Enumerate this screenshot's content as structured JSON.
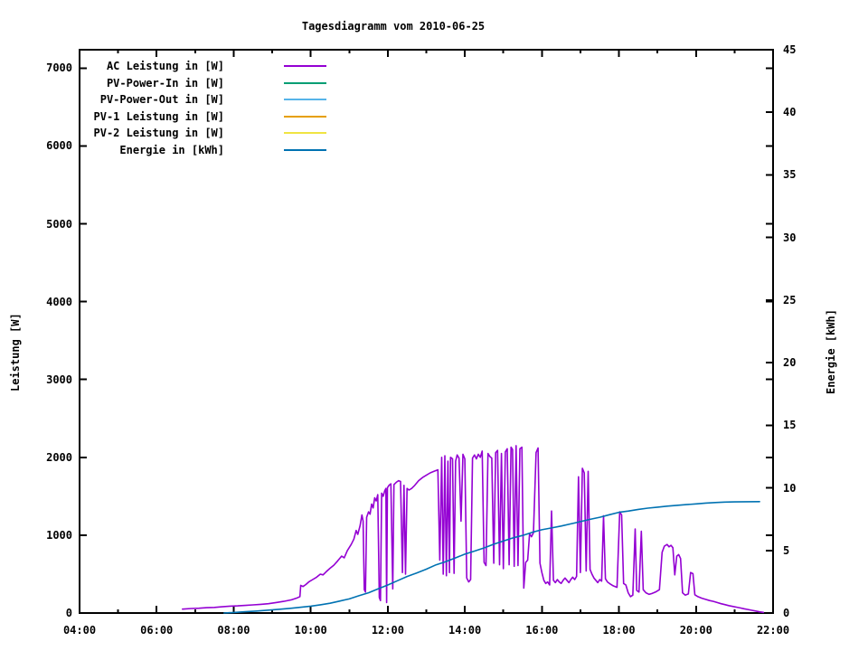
{
  "title": "Tagesdiagramm vom 2010-06-25",
  "axes": {
    "x": {
      "ticks": [
        {
          "t": 4,
          "label": "04:00"
        },
        {
          "t": 6,
          "label": "06:00"
        },
        {
          "t": 8,
          "label": "08:00"
        },
        {
          "t": 10,
          "label": "10:00"
        },
        {
          "t": 12,
          "label": "12:00"
        },
        {
          "t": 14,
          "label": "14:00"
        },
        {
          "t": 16,
          "label": "16:00"
        },
        {
          "t": 18,
          "label": "18:00"
        },
        {
          "t": 20,
          "label": "20:00"
        },
        {
          "t": 22,
          "label": "22:00"
        }
      ],
      "minor_hours": [
        5,
        7,
        9,
        11,
        13,
        15,
        17,
        19,
        21
      ]
    },
    "y_left": {
      "title": "Leistung [W]",
      "ticks": [
        {
          "v": 0,
          "label": "0"
        },
        {
          "v": 1000,
          "label": "1000"
        },
        {
          "v": 2000,
          "label": "2000"
        },
        {
          "v": 3000,
          "label": "3000"
        },
        {
          "v": 4000,
          "label": "4000"
        },
        {
          "v": 5000,
          "label": "5000"
        },
        {
          "v": 6000,
          "label": "6000"
        },
        {
          "v": 7000,
          "label": "7000"
        }
      ]
    },
    "y_right": {
      "title": "Energie [kWh]",
      "ticks": [
        {
          "v": 0,
          "label": "0"
        },
        {
          "v": 5,
          "label": "5"
        },
        {
          "v": 10,
          "label": "10"
        },
        {
          "v": 15,
          "label": "15"
        },
        {
          "v": 20,
          "label": "20"
        },
        {
          "v": 25,
          "label": "25"
        },
        {
          "v": 30,
          "label": "30"
        },
        {
          "v": 35,
          "label": "35"
        },
        {
          "v": 40,
          "label": "40"
        },
        {
          "v": 45,
          "label": "45"
        }
      ]
    }
  },
  "chart_data": {
    "type": "line",
    "title": "Tagesdiagramm vom 2010-06-25",
    "xlabel": "",
    "ylabel_left": "Leistung [W]",
    "ylabel_right": "Energie [kWh]",
    "xlim": [
      4,
      22
    ],
    "ylim_left": [
      0,
      7236
    ],
    "ylim_right": [
      0,
      45
    ],
    "x_unit": "hour_of_day",
    "grid": false,
    "legend_position": "top-left-inside",
    "series": [
      {
        "name": "AC Leistung in [W]",
        "color": "#9400D3",
        "axis": "left",
        "points": [
          [
            6.67,
            50
          ],
          [
            6.9,
            58
          ],
          [
            7.1,
            62
          ],
          [
            7.3,
            68
          ],
          [
            7.5,
            72
          ],
          [
            7.7,
            80
          ],
          [
            7.9,
            88
          ],
          [
            8.1,
            92
          ],
          [
            8.3,
            98
          ],
          [
            8.5,
            105
          ],
          [
            8.7,
            112
          ],
          [
            8.9,
            120
          ],
          [
            9.1,
            135
          ],
          [
            9.3,
            150
          ],
          [
            9.5,
            170
          ],
          [
            9.65,
            195
          ],
          [
            9.72,
            210
          ],
          [
            9.74,
            355
          ],
          [
            9.8,
            340
          ],
          [
            9.87,
            365
          ],
          [
            9.95,
            400
          ],
          [
            10.05,
            430
          ],
          [
            10.15,
            460
          ],
          [
            10.25,
            500
          ],
          [
            10.32,
            490
          ],
          [
            10.4,
            530
          ],
          [
            10.5,
            575
          ],
          [
            10.6,
            615
          ],
          [
            10.7,
            670
          ],
          [
            10.8,
            730
          ],
          [
            10.87,
            710
          ],
          [
            10.95,
            800
          ],
          [
            11.05,
            880
          ],
          [
            11.12,
            950
          ],
          [
            11.18,
            1060
          ],
          [
            11.22,
            1010
          ],
          [
            11.28,
            1120
          ],
          [
            11.33,
            1260
          ],
          [
            11.36,
            1180
          ],
          [
            11.39,
            300
          ],
          [
            11.42,
            270
          ],
          [
            11.45,
            1230
          ],
          [
            11.5,
            1300
          ],
          [
            11.54,
            1270
          ],
          [
            11.58,
            1400
          ],
          [
            11.62,
            1350
          ],
          [
            11.66,
            1480
          ],
          [
            11.7,
            1440
          ],
          [
            11.74,
            1520
          ],
          [
            11.78,
            200
          ],
          [
            11.81,
            160
          ],
          [
            11.84,
            1540
          ],
          [
            11.88,
            1500
          ],
          [
            11.92,
            1570
          ],
          [
            11.95,
            1600
          ],
          [
            11.97,
            135
          ],
          [
            11.99,
            1610
          ],
          [
            12.03,
            1640
          ],
          [
            12.08,
            1660
          ],
          [
            12.13,
            310
          ],
          [
            12.16,
            1650
          ],
          [
            12.22,
            1680
          ],
          [
            12.28,
            1700
          ],
          [
            12.33,
            1690
          ],
          [
            12.38,
            520
          ],
          [
            12.42,
            1640
          ],
          [
            12.46,
            500
          ],
          [
            12.5,
            1600
          ],
          [
            12.55,
            1580
          ],
          [
            12.62,
            1600
          ],
          [
            12.7,
            1640
          ],
          [
            12.8,
            1700
          ],
          [
            12.9,
            1740
          ],
          [
            13.0,
            1770
          ],
          [
            13.1,
            1800
          ],
          [
            13.2,
            1820
          ],
          [
            13.3,
            1840
          ],
          [
            13.35,
            680
          ],
          [
            13.4,
            2000
          ],
          [
            13.44,
            500
          ],
          [
            13.48,
            2020
          ],
          [
            13.52,
            480
          ],
          [
            13.56,
            1950
          ],
          [
            13.6,
            520
          ],
          [
            13.63,
            2000
          ],
          [
            13.68,
            1980
          ],
          [
            13.72,
            510
          ],
          [
            13.76,
            1950
          ],
          [
            13.8,
            2030
          ],
          [
            13.85,
            1990
          ],
          [
            13.9,
            1180
          ],
          [
            13.95,
            2040
          ],
          [
            14.0,
            1980
          ],
          [
            14.05,
            450
          ],
          [
            14.1,
            400
          ],
          [
            14.15,
            430
          ],
          [
            14.2,
            1990
          ],
          [
            14.25,
            2030
          ],
          [
            14.3,
            1980
          ],
          [
            14.35,
            2040
          ],
          [
            14.4,
            2000
          ],
          [
            14.45,
            2080
          ],
          [
            14.5,
            650
          ],
          [
            14.55,
            610
          ],
          [
            14.6,
            2050
          ],
          [
            14.65,
            2010
          ],
          [
            14.7,
            1990
          ],
          [
            14.75,
            640
          ],
          [
            14.8,
            2060
          ],
          [
            14.85,
            2090
          ],
          [
            14.9,
            620
          ],
          [
            14.95,
            2050
          ],
          [
            15.0,
            570
          ],
          [
            15.05,
            2070
          ],
          [
            15.1,
            2110
          ],
          [
            15.15,
            620
          ],
          [
            15.2,
            2130
          ],
          [
            15.24,
            2100
          ],
          [
            15.28,
            600
          ],
          [
            15.33,
            2150
          ],
          [
            15.38,
            610
          ],
          [
            15.43,
            2110
          ],
          [
            15.48,
            2130
          ],
          [
            15.53,
            320
          ],
          [
            15.58,
            650
          ],
          [
            15.63,
            680
          ],
          [
            15.68,
            1020
          ],
          [
            15.73,
            980
          ],
          [
            15.78,
            1030
          ],
          [
            15.85,
            2060
          ],
          [
            15.9,
            2120
          ],
          [
            15.95,
            640
          ],
          [
            16.0,
            520
          ],
          [
            16.05,
            420
          ],
          [
            16.1,
            380
          ],
          [
            16.15,
            400
          ],
          [
            16.2,
            360
          ],
          [
            16.25,
            1310
          ],
          [
            16.3,
            420
          ],
          [
            16.35,
            390
          ],
          [
            16.4,
            430
          ],
          [
            16.45,
            400
          ],
          [
            16.5,
            380
          ],
          [
            16.55,
            420
          ],
          [
            16.6,
            450
          ],
          [
            16.65,
            420
          ],
          [
            16.7,
            390
          ],
          [
            16.75,
            430
          ],
          [
            16.8,
            460
          ],
          [
            16.85,
            430
          ],
          [
            16.9,
            470
          ],
          [
            16.95,
            1750
          ],
          [
            17.0,
            520
          ],
          [
            17.05,
            1860
          ],
          [
            17.1,
            1800
          ],
          [
            17.15,
            540
          ],
          [
            17.2,
            1820
          ],
          [
            17.25,
            560
          ],
          [
            17.3,
            500
          ],
          [
            17.35,
            450
          ],
          [
            17.4,
            420
          ],
          [
            17.45,
            390
          ],
          [
            17.5,
            430
          ],
          [
            17.55,
            410
          ],
          [
            17.6,
            1250
          ],
          [
            17.65,
            440
          ],
          [
            17.7,
            400
          ],
          [
            17.78,
            370
          ],
          [
            17.85,
            350
          ],
          [
            17.95,
            330
          ],
          [
            18.02,
            1300
          ],
          [
            18.07,
            1260
          ],
          [
            18.12,
            380
          ],
          [
            18.18,
            360
          ],
          [
            18.24,
            260
          ],
          [
            18.3,
            210
          ],
          [
            18.36,
            230
          ],
          [
            18.42,
            1080
          ],
          [
            18.46,
            290
          ],
          [
            18.52,
            270
          ],
          [
            18.58,
            1050
          ],
          [
            18.63,
            300
          ],
          [
            18.7,
            260
          ],
          [
            18.78,
            240
          ],
          [
            18.85,
            250
          ],
          [
            18.95,
            270
          ],
          [
            19.05,
            300
          ],
          [
            19.12,
            780
          ],
          [
            19.18,
            860
          ],
          [
            19.25,
            880
          ],
          [
            19.3,
            850
          ],
          [
            19.35,
            870
          ],
          [
            19.4,
            840
          ],
          [
            19.45,
            490
          ],
          [
            19.5,
            730
          ],
          [
            19.55,
            750
          ],
          [
            19.6,
            700
          ],
          [
            19.65,
            260
          ],
          [
            19.72,
            230
          ],
          [
            19.8,
            245
          ],
          [
            19.86,
            520
          ],
          [
            19.92,
            505
          ],
          [
            19.97,
            235
          ],
          [
            20.05,
            210
          ],
          [
            20.15,
            190
          ],
          [
            20.25,
            175
          ],
          [
            20.35,
            160
          ],
          [
            20.45,
            150
          ],
          [
            20.55,
            135
          ],
          [
            20.65,
            120
          ],
          [
            20.75,
            108
          ],
          [
            20.85,
            95
          ],
          [
            20.95,
            85
          ],
          [
            21.05,
            75
          ],
          [
            21.15,
            65
          ],
          [
            21.25,
            55
          ],
          [
            21.35,
            45
          ],
          [
            21.45,
            35
          ],
          [
            21.55,
            25
          ],
          [
            21.65,
            15
          ],
          [
            21.75,
            8
          ]
        ]
      },
      {
        "name": "PV-Power-In in [W]",
        "color": "#009E73",
        "axis": "left",
        "points": []
      },
      {
        "name": "PV-Power-Out in [W]",
        "color": "#56B4E9",
        "axis": "left",
        "points": []
      },
      {
        "name": "PV-1 Leistung in [W]",
        "color": "#E69F00",
        "axis": "left",
        "points": []
      },
      {
        "name": "PV-2 Leistung in [W]",
        "color": "#F0E442",
        "axis": "left",
        "points": []
      },
      {
        "name": "Energie in [kWh]",
        "color": "#0072B2",
        "axis": "right",
        "points": [
          [
            7.75,
            0
          ],
          [
            8.0,
            0.04
          ],
          [
            8.3,
            0.1
          ],
          [
            8.6,
            0.16
          ],
          [
            8.9,
            0.23
          ],
          [
            9.2,
            0.3
          ],
          [
            9.5,
            0.38
          ],
          [
            9.75,
            0.46
          ],
          [
            10.0,
            0.55
          ],
          [
            10.25,
            0.66
          ],
          [
            10.5,
            0.78
          ],
          [
            10.75,
            0.95
          ],
          [
            11.0,
            1.13
          ],
          [
            11.25,
            1.38
          ],
          [
            11.5,
            1.62
          ],
          [
            11.75,
            1.93
          ],
          [
            12.0,
            2.24
          ],
          [
            12.25,
            2.58
          ],
          [
            12.5,
            2.92
          ],
          [
            12.75,
            3.2
          ],
          [
            13.0,
            3.5
          ],
          [
            13.25,
            3.85
          ],
          [
            13.5,
            4.1
          ],
          [
            13.75,
            4.4
          ],
          [
            14.0,
            4.7
          ],
          [
            14.25,
            4.95
          ],
          [
            14.5,
            5.2
          ],
          [
            14.75,
            5.5
          ],
          [
            15.0,
            5.75
          ],
          [
            15.25,
            6.0
          ],
          [
            15.5,
            6.2
          ],
          [
            15.75,
            6.45
          ],
          [
            16.0,
            6.65
          ],
          [
            16.25,
            6.8
          ],
          [
            16.5,
            6.95
          ],
          [
            16.75,
            7.12
          ],
          [
            17.0,
            7.3
          ],
          [
            17.25,
            7.48
          ],
          [
            17.5,
            7.65
          ],
          [
            17.75,
            7.85
          ],
          [
            18.0,
            8.05
          ],
          [
            18.25,
            8.15
          ],
          [
            18.5,
            8.28
          ],
          [
            18.75,
            8.38
          ],
          [
            19.0,
            8.46
          ],
          [
            19.25,
            8.54
          ],
          [
            19.5,
            8.6
          ],
          [
            19.75,
            8.66
          ],
          [
            20.0,
            8.72
          ],
          [
            20.25,
            8.78
          ],
          [
            20.5,
            8.83
          ],
          [
            20.75,
            8.86
          ],
          [
            21.0,
            8.88
          ],
          [
            21.3,
            8.89
          ],
          [
            21.65,
            8.9
          ]
        ]
      }
    ]
  }
}
